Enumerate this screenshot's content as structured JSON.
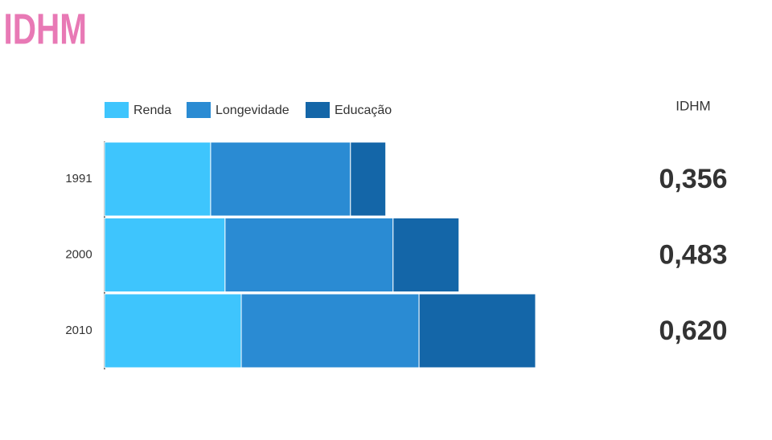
{
  "title": "IDHM",
  "chart_data": {
    "type": "stacked-bar-horizontal",
    "categories": [
      "1991",
      "2000",
      "2010"
    ],
    "series": [
      {
        "name": "Renda",
        "color": "#3ec5fd",
        "values": [
          0.478,
          0.543,
          0.616
        ]
      },
      {
        "name": "Longevidade",
        "color": "#2a8bd3",
        "values": [
          0.63,
          0.757,
          0.801
        ]
      },
      {
        "name": "Educação",
        "color": "#1466a8",
        "values": [
          0.159,
          0.297,
          0.525
        ]
      }
    ],
    "legend": "top-left",
    "idhm": {
      "label": "IDHM",
      "values": [
        0.356,
        0.483,
        0.62
      ],
      "value_labels": [
        "0,356",
        "0,483",
        "0,620"
      ]
    }
  }
}
